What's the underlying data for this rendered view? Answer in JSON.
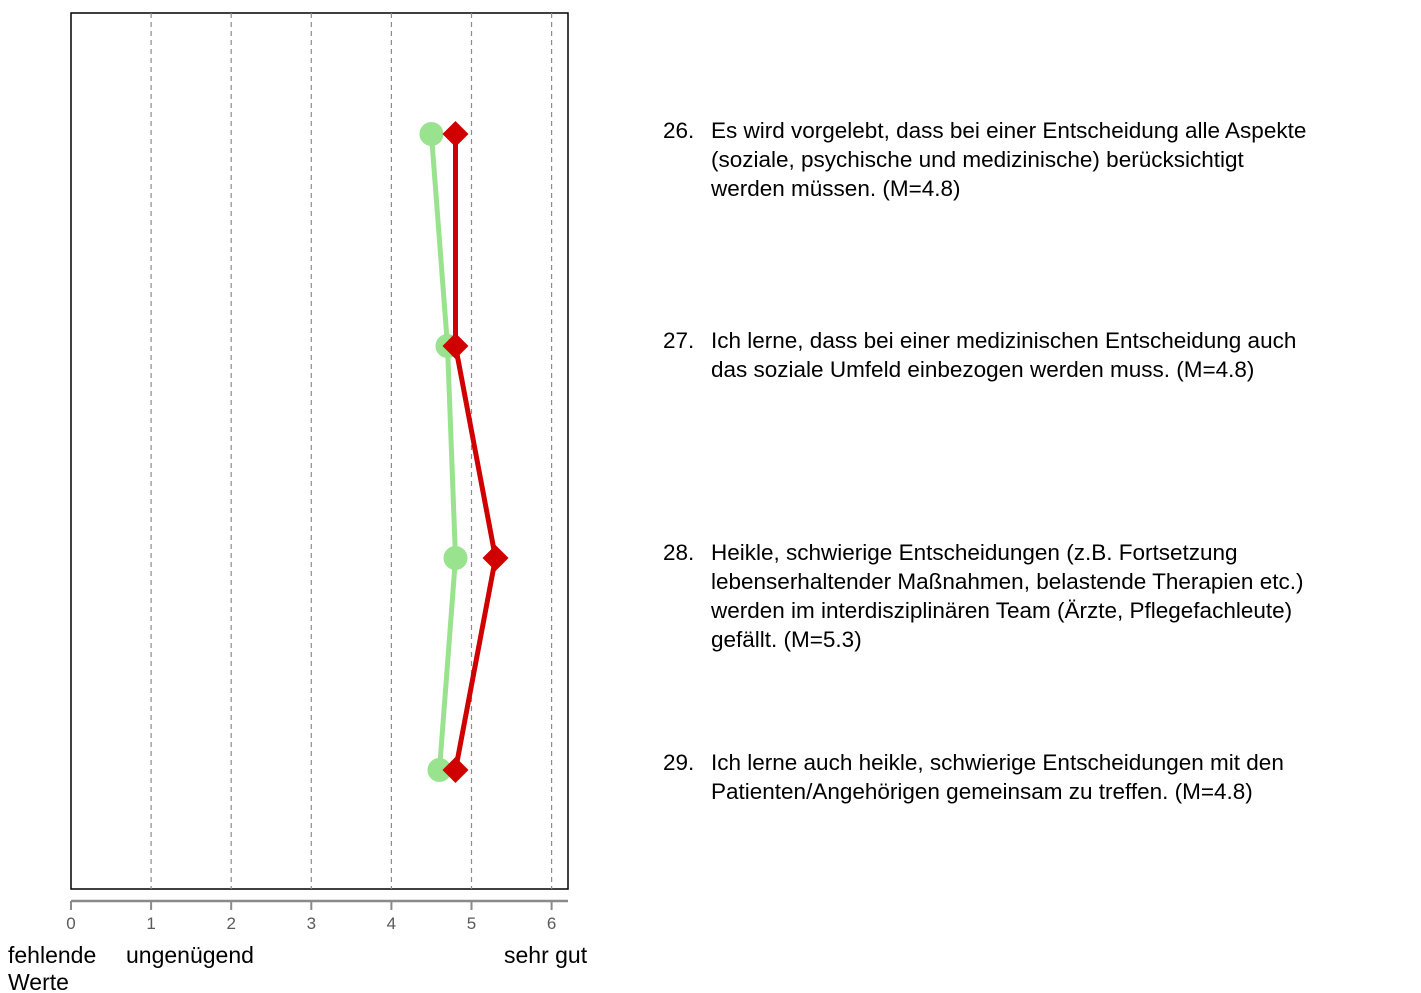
{
  "chart_data": {
    "type": "line",
    "orientation": "horizontal-values",
    "xlim": [
      0,
      6.2
    ],
    "x_ticks": [
      "0",
      "1",
      "2",
      "3",
      "4",
      "5",
      "6"
    ],
    "grid": "vertical dashed at 1-6",
    "scale_labels": [
      "fehlende Werte",
      "ungenügend",
      "sehr gut"
    ],
    "series": [
      {
        "color": "#99e38e",
        "marker": "circle",
        "values": [
          4.5,
          4.7,
          4.8,
          4.6
        ]
      },
      {
        "color": "#d00000",
        "marker": "diamond",
        "values": [
          4.8,
          4.8,
          5.3,
          4.8
        ]
      }
    ]
  },
  "items": [
    {
      "number": "26.",
      "text": "Es wird vorgelebt, dass bei einer Entscheidung alle Aspekte\n(soziale, psychische und medizinische) berücksichtigt\nwerden müssen. (M=4.8)"
    },
    {
      "number": "27.",
      "text": "Ich lerne, dass bei einer medizinischen Entscheidung auch\ndas soziale Umfeld einbezogen werden muss. (M=4.8)"
    },
    {
      "number": "28.",
      "text": "Heikle, schwierige Entscheidungen (z.B. Fortsetzung\nlebenserhaltender Maßnahmen, belastende Therapien etc.)\nwerden im interdisziplinären Team (Ärzte, Pflegefachleute)\ngefällt. (M=5.3)"
    },
    {
      "number": "29.",
      "text": "Ich lerne auch heikle, schwierige Entscheidungen mit den\nPatienten/Angehörigen gemeinsam zu treffen. (M=4.8)"
    }
  ],
  "labels": {
    "missing_line1": "fehlende",
    "missing_line2": "Werte",
    "insufficient": "ungenügend",
    "very_good": "sehr gut"
  }
}
